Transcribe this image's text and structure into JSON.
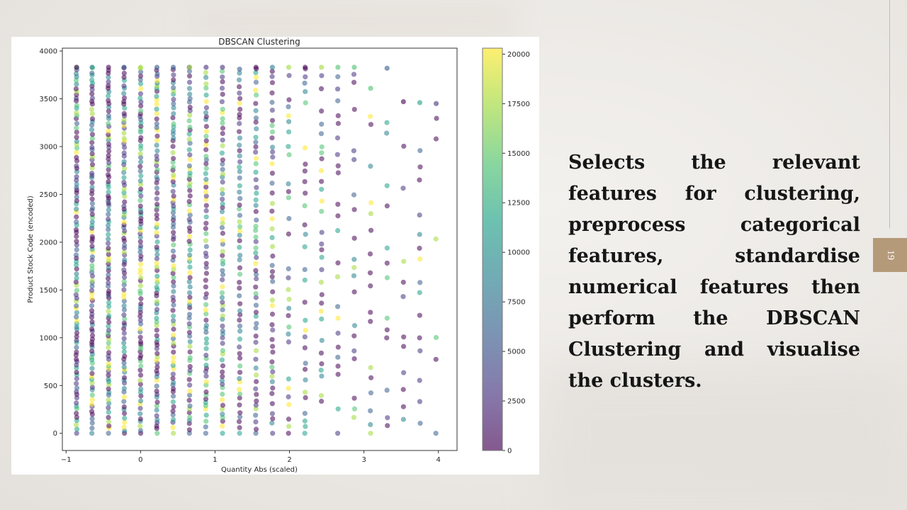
{
  "slide": {
    "description": "Selects the relevant features for clustering, preprocess categorical features, standardise numerical features then perform the DBSCAN Clustering and visualise the clusters.",
    "page_number": "19"
  },
  "colors": {
    "accent": "#b59a7a",
    "viridis": [
      "#440154",
      "#46327e",
      "#365c8d",
      "#277f8e",
      "#1fa187",
      "#4ac16d",
      "#a0da39",
      "#fde725"
    ]
  },
  "chart_data": {
    "type": "scatter",
    "title": "DBSCAN Clustering",
    "xlabel": "Quantity Abs (scaled)",
    "ylabel": "Product Stock Code (encoded)",
    "xlim": [
      -1.05,
      4.25
    ],
    "ylim": [
      -180,
      4030
    ],
    "xticks": [
      -1,
      0,
      1,
      2,
      3,
      4
    ],
    "xtick_labels": [
      "−1",
      "0",
      "1",
      "2",
      "3",
      "4"
    ],
    "yticks": [
      0,
      500,
      1000,
      1500,
      2000,
      2500,
      3000,
      3500,
      4000
    ],
    "colorbar": {
      "label": "",
      "min": 0,
      "max": 20300,
      "ticks": [
        0,
        2500,
        5000,
        7500,
        10000,
        12500,
        15000,
        17500,
        20000
      ],
      "colormap": "viridis"
    },
    "grid": false,
    "note_x_columns": "points lie on discrete columns of scaled quantity",
    "columns": [
      {
        "x": -0.86,
        "ymax": 3830,
        "density": 1.0
      },
      {
        "x": -0.65,
        "ymax": 3830,
        "density": 1.0
      },
      {
        "x": -0.43,
        "ymax": 3830,
        "density": 1.0
      },
      {
        "x": -0.22,
        "ymax": 3830,
        "density": 0.95
      },
      {
        "x": 0.0,
        "ymax": 3830,
        "density": 0.95
      },
      {
        "x": 0.22,
        "ymax": 3830,
        "density": 0.9
      },
      {
        "x": 0.44,
        "ymax": 3830,
        "density": 0.85
      },
      {
        "x": 0.66,
        "ymax": 3830,
        "density": 0.8
      },
      {
        "x": 0.88,
        "ymax": 3830,
        "density": 0.75
      },
      {
        "x": 1.1,
        "ymax": 3830,
        "density": 0.7
      },
      {
        "x": 1.33,
        "ymax": 3810,
        "density": 0.65
      },
      {
        "x": 1.55,
        "ymax": 3830,
        "density": 0.6
      },
      {
        "x": 1.77,
        "ymax": 3830,
        "density": 0.5
      },
      {
        "x": 1.99,
        "ymax": 3830,
        "density": 0.45
      },
      {
        "x": 2.21,
        "ymax": 3830,
        "density": 0.42
      },
      {
        "x": 2.43,
        "ymax": 3830,
        "density": 0.4
      },
      {
        "x": 2.65,
        "ymax": 3830,
        "density": 0.35
      },
      {
        "x": 2.87,
        "ymax": 3830,
        "density": 0.32
      },
      {
        "x": 3.09,
        "ymax": 3610,
        "density": 0.28
      },
      {
        "x": 3.31,
        "ymax": 3820,
        "density": 0.28
      },
      {
        "x": 3.53,
        "ymax": 3470,
        "density": 0.25
      },
      {
        "x": 3.75,
        "ymax": 3460,
        "density": 0.22
      },
      {
        "x": 3.97,
        "ymax": 3450,
        "density": 0.2
      }
    ]
  }
}
